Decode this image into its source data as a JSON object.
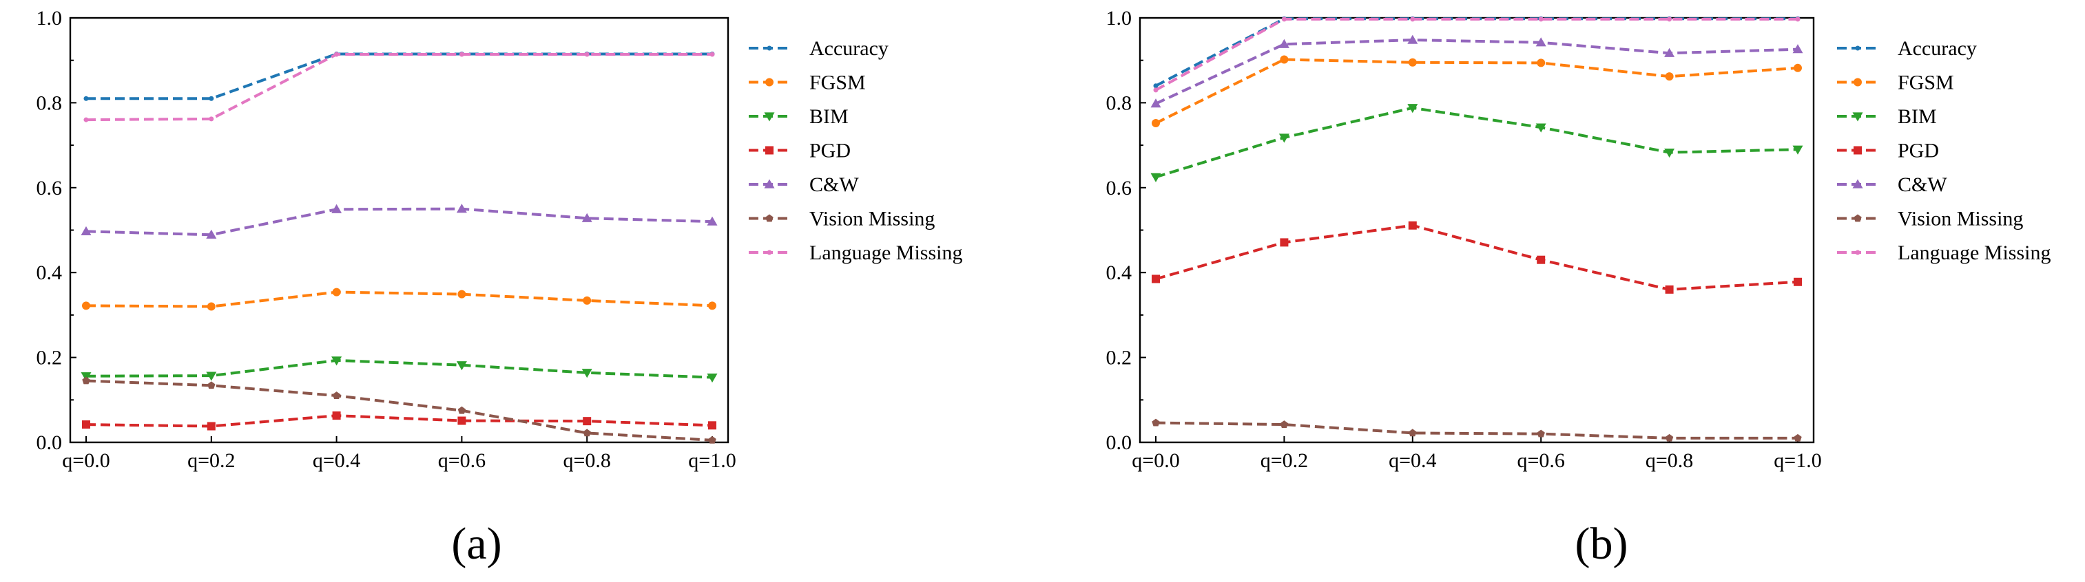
{
  "chart_data": [
    {
      "type": "line",
      "panel": "(a)",
      "categories": [
        "q=0.0",
        "q=0.2",
        "q=0.4",
        "q=0.6",
        "q=0.8",
        "q=1.0"
      ],
      "ylim": [
        0,
        1.0
      ],
      "yticks": [
        "0.0",
        "0.2",
        "0.4",
        "0.6",
        "0.8",
        "1.0"
      ],
      "legend_position": "outside-right",
      "series": [
        {
          "name": "Accuracy",
          "color": "#1f77b4",
          "marker": "dot",
          "values": [
            0.81,
            0.81,
            0.915,
            0.915,
            0.915,
            0.915
          ]
        },
        {
          "name": "FGSM",
          "color": "#ff7f0e",
          "marker": "circle",
          "values": [
            0.322,
            0.32,
            0.354,
            0.349,
            0.334,
            0.322
          ]
        },
        {
          "name": "BIM",
          "color": "#2ca02c",
          "marker": "triangle-down",
          "values": [
            0.156,
            0.157,
            0.193,
            0.182,
            0.164,
            0.153
          ]
        },
        {
          "name": "PGD",
          "color": "#d62728",
          "marker": "square",
          "values": [
            0.042,
            0.038,
            0.063,
            0.051,
            0.05,
            0.04
          ]
        },
        {
          "name": "C&W",
          "color": "#9467bd",
          "marker": "triangle-up",
          "values": [
            0.497,
            0.489,
            0.549,
            0.55,
            0.528,
            0.52
          ]
        },
        {
          "name": "Vision Missing",
          "color": "#8c564b",
          "marker": "pentagon",
          "values": [
            0.145,
            0.134,
            0.11,
            0.075,
            0.022,
            0.005
          ]
        },
        {
          "name": "Language Missing",
          "color": "#e377c2",
          "marker": "dot",
          "values": [
            0.76,
            0.762,
            0.914,
            0.914,
            0.914,
            0.914
          ]
        }
      ]
    },
    {
      "type": "line",
      "panel": "(b)",
      "categories": [
        "q=0.0",
        "q=0.2",
        "q=0.4",
        "q=0.6",
        "q=0.8",
        "q=1.0"
      ],
      "ylim": [
        0,
        1.0
      ],
      "yticks": [
        "0.0",
        "0.2",
        "0.4",
        "0.6",
        "0.8",
        "1.0"
      ],
      "legend_position": "outside-right",
      "series": [
        {
          "name": "Accuracy",
          "color": "#1f77b4",
          "marker": "dot",
          "values": [
            0.84,
            0.998,
            0.998,
            0.998,
            0.998,
            0.998
          ]
        },
        {
          "name": "FGSM",
          "color": "#ff7f0e",
          "marker": "circle",
          "values": [
            0.752,
            0.902,
            0.895,
            0.894,
            0.862,
            0.882
          ]
        },
        {
          "name": "BIM",
          "color": "#2ca02c",
          "marker": "triangle-down",
          "values": [
            0.625,
            0.718,
            0.788,
            0.742,
            0.683,
            0.69
          ]
        },
        {
          "name": "PGD",
          "color": "#d62728",
          "marker": "square",
          "values": [
            0.385,
            0.471,
            0.511,
            0.43,
            0.36,
            0.378
          ]
        },
        {
          "name": "C&W",
          "color": "#9467bd",
          "marker": "triangle-up",
          "values": [
            0.798,
            0.938,
            0.948,
            0.942,
            0.917,
            0.926
          ]
        },
        {
          "name": "Vision Missing",
          "color": "#8c564b",
          "marker": "pentagon",
          "values": [
            0.046,
            0.042,
            0.022,
            0.02,
            0.01,
            0.01
          ]
        },
        {
          "name": "Language Missing",
          "color": "#e377c2",
          "marker": "dot",
          "values": [
            0.83,
            0.997,
            0.997,
            0.997,
            0.997,
            0.997
          ]
        }
      ]
    }
  ]
}
